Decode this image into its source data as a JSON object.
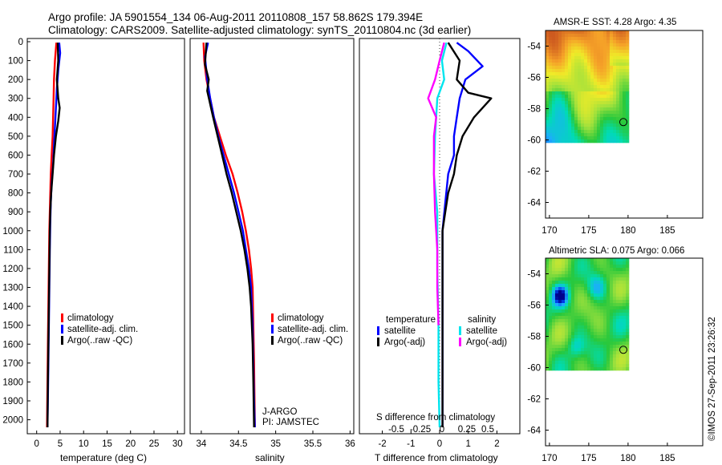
{
  "header": {
    "line1": "Argo profile: JA 5901554_134 06-Aug-2011 20110808_157 58.862S 179.394E",
    "line2": "Climatology: CARS2009. Satellite-adjusted climatology: synTS_20110804.nc (3d earlier)"
  },
  "imos_stamp": "©IMOS 27-Sep-2011 23:26:32",
  "colors": {
    "climatology": "#ff0000",
    "satellite": "#0000ff",
    "argo": "#000000",
    "satellite_s": "#00e5ee",
    "argo_s": "#ff00ff"
  },
  "depth_ticks": [
    "0",
    "100",
    "200",
    "300",
    "400",
    "500",
    "600",
    "700",
    "800",
    "900",
    "1000",
    "1100",
    "1200",
    "1300",
    "1400",
    "1500",
    "1600",
    "1700",
    "1800",
    "1900",
    "2000"
  ],
  "chart_data": [
    {
      "type": "line",
      "id": "temperature",
      "xlabel": "temperature (deg C)",
      "xticks": [
        "0",
        "5",
        "10",
        "15",
        "20",
        "25",
        "30"
      ],
      "xlim": [
        -2,
        31.5
      ],
      "ylim": [
        2080,
        0
      ],
      "legend": [
        {
          "name": "climatology",
          "color": "#ff0000"
        },
        {
          "name": "satellite-adj. clim.",
          "color": "#0000ff"
        },
        {
          "name": "Argo(..raw -QC)",
          "color": "#000000"
        }
      ],
      "series": [
        {
          "name": "climatology",
          "color": "#ff0000",
          "points": [
            [
              4.2,
              5
            ],
            [
              3.9,
              100
            ],
            [
              3.7,
              200
            ],
            [
              3.6,
              300
            ],
            [
              3.5,
              400
            ],
            [
              3.4,
              500
            ],
            [
              3.2,
              600
            ],
            [
              3.0,
              700
            ],
            [
              2.9,
              800
            ],
            [
              2.8,
              900
            ],
            [
              2.7,
              1000
            ],
            [
              2.6,
              1200
            ],
            [
              2.5,
              1400
            ],
            [
              2.4,
              1600
            ],
            [
              2.3,
              1800
            ],
            [
              2.2,
              2040
            ]
          ]
        },
        {
          "name": "satellite-adj. clim.",
          "color": "#0000ff",
          "points": [
            [
              4.8,
              5
            ],
            [
              5.0,
              60
            ],
            [
              4.6,
              150
            ],
            [
              4.3,
              250
            ],
            [
              4.1,
              350
            ],
            [
              3.9,
              450
            ],
            [
              3.7,
              550
            ],
            [
              3.5,
              650
            ],
            [
              3.2,
              750
            ],
            [
              3.0,
              850
            ],
            [
              2.9,
              950
            ],
            [
              2.8,
              1100
            ],
            [
              2.7,
              1300
            ],
            [
              2.6,
              1500
            ],
            [
              2.5,
              1700
            ],
            [
              2.4,
              1900
            ],
            [
              2.3,
              2040
            ]
          ]
        },
        {
          "name": "Argo(..raw -QC)",
          "color": "#000000",
          "points": [
            [
              4.5,
              5
            ],
            [
              4.6,
              100
            ],
            [
              4.3,
              200
            ],
            [
              4.6,
              300
            ],
            [
              4.9,
              350
            ],
            [
              4.6,
              420
            ],
            [
              4.1,
              500
            ],
            [
              3.7,
              600
            ],
            [
              3.4,
              700
            ],
            [
              3.1,
              800
            ],
            [
              2.9,
              900
            ],
            [
              2.8,
              1000
            ],
            [
              2.7,
              1200
            ],
            [
              2.6,
              1400
            ],
            [
              2.5,
              1600
            ],
            [
              2.4,
              1800
            ],
            [
              2.3,
              2040
            ]
          ]
        }
      ]
    },
    {
      "type": "line",
      "id": "salinity",
      "xlabel": "salinity",
      "xticks": [
        "34",
        "34.5",
        "35",
        "35.5",
        "36"
      ],
      "xlim": [
        33.85,
        36.05
      ],
      "ylim": [
        2080,
        0
      ],
      "legend": [
        {
          "name": "climatology",
          "color": "#ff0000"
        },
        {
          "name": "satellite-adj. clim.",
          "color": "#0000ff"
        },
        {
          "name": "Argo(..raw -QC)",
          "color": "#000000"
        }
      ],
      "annotations": [
        "J-ARGO",
        "PI: JAMSTEC"
      ],
      "series": [
        {
          "name": "climatology",
          "color": "#ff0000",
          "points": [
            [
              34.03,
              5
            ],
            [
              34.04,
              100
            ],
            [
              34.07,
              200
            ],
            [
              34.12,
              300
            ],
            [
              34.17,
              400
            ],
            [
              34.25,
              500
            ],
            [
              34.33,
              600
            ],
            [
              34.42,
              700
            ],
            [
              34.49,
              800
            ],
            [
              34.55,
              900
            ],
            [
              34.6,
              1000
            ],
            [
              34.64,
              1100
            ],
            [
              34.67,
              1200
            ],
            [
              34.69,
              1300
            ],
            [
              34.7,
              1500
            ],
            [
              34.71,
              1700
            ],
            [
              34.72,
              2040
            ]
          ]
        },
        {
          "name": "satellite-adj. clim.",
          "color": "#0000ff",
          "points": [
            [
              34.09,
              5
            ],
            [
              34.05,
              80
            ],
            [
              34.08,
              200
            ],
            [
              34.12,
              300
            ],
            [
              34.17,
              400
            ],
            [
              34.23,
              500
            ],
            [
              34.3,
              600
            ],
            [
              34.37,
              700
            ],
            [
              34.44,
              800
            ],
            [
              34.5,
              900
            ],
            [
              34.56,
              1000
            ],
            [
              34.6,
              1100
            ],
            [
              34.64,
              1200
            ],
            [
              34.67,
              1300
            ],
            [
              34.69,
              1500
            ],
            [
              34.7,
              1700
            ],
            [
              34.71,
              1900
            ],
            [
              34.72,
              2040
            ]
          ]
        },
        {
          "name": "Argo(..raw -QC)",
          "color": "#000000",
          "points": [
            [
              34.07,
              5
            ],
            [
              34.05,
              120
            ],
            [
              34.1,
              200
            ],
            [
              34.08,
              260
            ],
            [
              34.12,
              330
            ],
            [
              34.16,
              400
            ],
            [
              34.22,
              500
            ],
            [
              34.28,
              600
            ],
            [
              34.34,
              700
            ],
            [
              34.41,
              800
            ],
            [
              34.47,
              900
            ],
            [
              34.53,
              1000
            ],
            [
              34.58,
              1100
            ],
            [
              34.62,
              1200
            ],
            [
              34.65,
              1300
            ],
            [
              34.67,
              1400
            ],
            [
              34.69,
              1600
            ],
            [
              34.7,
              1800
            ],
            [
              34.71,
              2040
            ]
          ]
        }
      ]
    },
    {
      "type": "line",
      "id": "difference",
      "xlabel": "T difference from climatology",
      "xticks": [
        "-2",
        "-1",
        "0",
        "1",
        "2"
      ],
      "xlim": [
        -2.8,
        2.8
      ],
      "top_label": "S difference from climatology",
      "top_ticks": [
        "-0.5",
        "-0.25",
        "0",
        "0.25",
        "0.5"
      ],
      "ylim": [
        2080,
        0
      ],
      "legend_temperature": {
        "title": "temperature",
        "items": [
          {
            "name": "satellite",
            "color": "#0000ff"
          },
          {
            "name": "Argo(-adj)",
            "color": "#000000"
          }
        ]
      },
      "legend_salinity": {
        "title": "salinity",
        "items": [
          {
            "name": "satellite",
            "color": "#00e5ee"
          },
          {
            "name": "Argo(-adj)",
            "color": "#ff00ff"
          }
        ]
      },
      "series": [
        {
          "name": "temperature satellite",
          "color": "#0000ff",
          "points": [
            [
              0.6,
              5
            ],
            [
              1.0,
              50
            ],
            [
              1.5,
              130
            ],
            [
              0.9,
              200
            ],
            [
              0.7,
              300
            ],
            [
              0.6,
              400
            ],
            [
              0.5,
              500
            ],
            [
              0.5,
              600
            ],
            [
              0.3,
              700
            ],
            [
              0.2,
              850
            ],
            [
              0.1,
              1000
            ],
            [
              0.1,
              1200
            ],
            [
              0.1,
              1500
            ],
            [
              0.1,
              1800
            ],
            [
              0.1,
              2040
            ]
          ]
        },
        {
          "name": "temperature Argo(-adj)",
          "color": "#000000",
          "points": [
            [
              0.3,
              5
            ],
            [
              0.7,
              100
            ],
            [
              0.6,
              200
            ],
            [
              1.0,
              270
            ],
            [
              1.8,
              300
            ],
            [
              1.2,
              400
            ],
            [
              0.8,
              500
            ],
            [
              0.6,
              600
            ],
            [
              0.5,
              700
            ],
            [
              0.3,
              800
            ],
            [
              0.2,
              900
            ],
            [
              0.1,
              1000
            ],
            [
              0.1,
              1200
            ],
            [
              0.1,
              1500
            ],
            [
              0.1,
              1800
            ],
            [
              0.1,
              2040
            ]
          ]
        },
        {
          "name": "salinity satellite",
          "color": "#00e5ee",
          "points": [
            [
              0.06,
              5
            ],
            [
              0.02,
              100
            ],
            [
              0.04,
              200
            ],
            [
              -0.02,
              300
            ],
            [
              -0.04,
              500
            ],
            [
              -0.05,
              700
            ],
            [
              -0.02,
              900
            ],
            [
              -0.02,
              1200
            ],
            [
              -0.01,
              1500
            ],
            [
              -0.01,
              1800
            ],
            [
              0.0,
              2040
            ]
          ]
        },
        {
          "name": "salinity Argo(-adj)",
          "color": "#ff00ff",
          "points": [
            [
              0.04,
              5
            ],
            [
              0.0,
              100
            ],
            [
              -0.04,
              200
            ],
            [
              -0.1,
              300
            ],
            [
              -0.03,
              400
            ],
            [
              -0.05,
              500
            ],
            [
              -0.05,
              600
            ],
            [
              -0.05,
              700
            ],
            [
              -0.04,
              900
            ],
            [
              -0.02,
              1100
            ],
            [
              -0.02,
              1300
            ],
            [
              -0.01,
              1500
            ]
          ]
        }
      ]
    },
    {
      "type": "heatmap",
      "id": "sst_map",
      "title": "AMSR-E SST: 4.28 Argo: 4.35",
      "xticks": [
        "170",
        "175",
        "180",
        "185"
      ],
      "yticks": [
        "-54",
        "-56",
        "-58",
        "-60",
        "-62",
        "-64"
      ],
      "xlim": [
        169.5,
        189.5
      ],
      "ylim": [
        -65,
        -53
      ],
      "data_extent": {
        "lon": [
          169.5,
          180
        ],
        "lat": [
          -60,
          -53
        ]
      },
      "marker": {
        "lon": 179.394,
        "lat": -58.862
      }
    },
    {
      "type": "heatmap",
      "id": "sla_map",
      "title": "Altimetric SLA: 0.075 Argo: 0.066",
      "xticks": [
        "170",
        "175",
        "180",
        "185"
      ],
      "yticks": [
        "-54",
        "-56",
        "-58",
        "-60",
        "-62",
        "-64"
      ],
      "xlim": [
        169.5,
        189.5
      ],
      "ylim": [
        -65,
        -53
      ],
      "data_extent": {
        "lon": [
          169.5,
          180
        ],
        "lat": [
          -60,
          -53
        ]
      },
      "marker": {
        "lon": 179.394,
        "lat": -58.862
      }
    }
  ]
}
